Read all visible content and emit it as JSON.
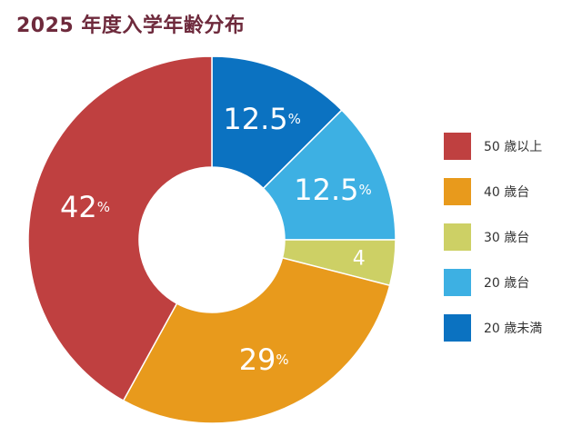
{
  "title": "2025 年度入学年齢分布",
  "chart_data": {
    "type": "pie",
    "title": "2025 年度入学年齢分布",
    "donut": true,
    "legend_position": "right",
    "slices": [
      {
        "name": "20 歳未満",
        "value": 12.5,
        "label": "12.5",
        "unit": "%",
        "color": "#0b72c1"
      },
      {
        "name": "20 歳台",
        "value": 12.5,
        "label": "12.5",
        "unit": "%",
        "color": "#3db0e3"
      },
      {
        "name": "30 歳台",
        "value": 4,
        "label": "4",
        "unit": "",
        "color": "#cdd065"
      },
      {
        "name": "40 歳台",
        "value": 29,
        "label": "29",
        "unit": "%",
        "color": "#e89a1c"
      },
      {
        "name": "50 歳以上",
        "value": 42,
        "label": "42",
        "unit": "%",
        "color": "#bf4040"
      }
    ],
    "legend_order": [
      "50 歳以上",
      "40 歳台",
      "30 歳台",
      "20 歳台",
      "20 歳未満"
    ]
  }
}
